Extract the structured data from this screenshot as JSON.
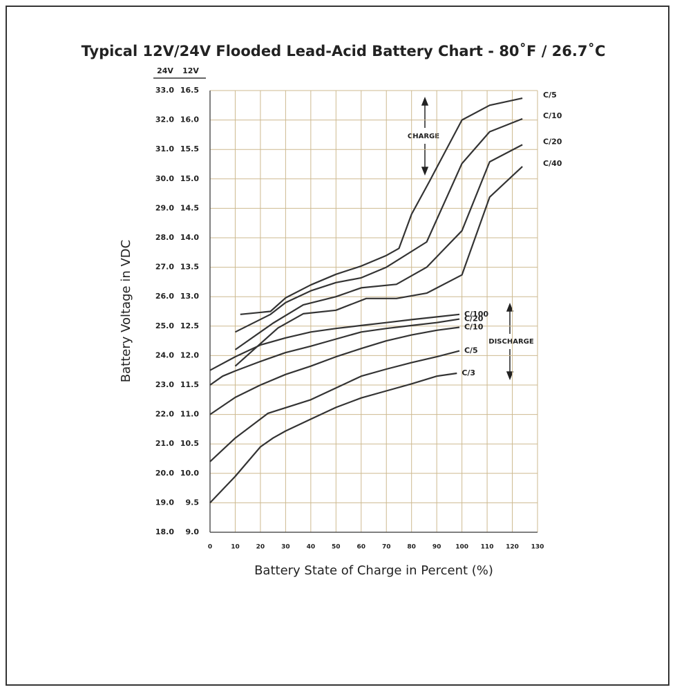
{
  "chart_data": {
    "type": "line",
    "title": "Typical 12V/24V Flooded Lead-Acid Battery Chart - 80˚F / 26.7˚C",
    "x_label": "Battery State of Charge in Percent (%)",
    "y_label": "Battery Voltage in VDC",
    "y_header": "12V",
    "y2_header": "24V",
    "annotations": [
      "CHARGE",
      "DISCHARGE"
    ],
    "xlim": [
      0,
      130
    ],
    "xticks": [
      0,
      10,
      20,
      30,
      40,
      50,
      60,
      70,
      80,
      90,
      100,
      110,
      120,
      130
    ],
    "ylim": [
      9,
      16.5
    ],
    "yticks": [
      {
        "value": 9,
        "label": "9.0"
      },
      9.5,
      {
        "value": 10,
        "label": "10.0"
      },
      10.5,
      {
        "value": 11,
        "label": "11.0"
      },
      11.5,
      {
        "value": 12,
        "label": "12.0"
      },
      12.5,
      {
        "value": 13,
        "label": "13.0"
      },
      13.5,
      {
        "value": 14,
        "label": "14.0"
      },
      14.5,
      {
        "value": 15,
        "label": "15.0"
      },
      15.5,
      {
        "value": 16,
        "label": "16.0"
      },
      16.5
    ],
    "y2lim": [
      18,
      33
    ],
    "y2ticks": [
      {
        "value": 18,
        "label": "18.0"
      },
      {
        "value": 19,
        "label": "19.0"
      },
      {
        "value": 20,
        "label": "20.0"
      },
      {
        "value": 21,
        "label": "21.0"
      },
      {
        "value": 22,
        "label": "22.0"
      },
      {
        "value": 23,
        "label": "23.0"
      },
      {
        "value": 24,
        "label": "24.0"
      },
      {
        "value": 25,
        "label": "25.0"
      },
      {
        "value": 26,
        "label": "26.0"
      },
      {
        "value": 27,
        "label": "27.0"
      },
      {
        "value": 28,
        "label": "28.0"
      },
      {
        "value": 29,
        "label": "29.0"
      },
      {
        "value": 30,
        "label": "30.0"
      },
      {
        "value": 31,
        "label": "31.0"
      },
      {
        "value": 32,
        "label": "32.0"
      },
      {
        "value": 33,
        "label": "33.0"
      }
    ],
    "grid": true,
    "grid_color": "#cdb98f",
    "series": [
      {
        "name": "C/5",
        "color": "#333333",
        "x": [
          12,
          24,
          30,
          40,
          50,
          60,
          70,
          75,
          80,
          87,
          100,
          111,
          124
        ],
        "values": [
          12.7,
          12.75,
          12.98,
          13.2,
          13.38,
          13.52,
          13.7,
          13.82,
          14.4,
          14.95,
          16.0,
          16.25,
          16.37
        ]
      },
      {
        "name": "C/10",
        "color": "#333333",
        "x": [
          10,
          24,
          30,
          40,
          50,
          60,
          70,
          86,
          100,
          111,
          124
        ],
        "values": [
          12.4,
          12.7,
          12.9,
          13.1,
          13.24,
          13.32,
          13.5,
          13.93,
          15.26,
          15.8,
          16.02
        ]
      },
      {
        "name": "C/20",
        "color": "#333333",
        "x": [
          10,
          25,
          37,
          50,
          60,
          74,
          86,
          100,
          111,
          124
        ],
        "values": [
          12.1,
          12.55,
          12.86,
          13.0,
          13.15,
          13.21,
          13.5,
          14.12,
          15.29,
          15.58
        ]
      },
      {
        "name": "C/40",
        "color": "#333333",
        "x": [
          10,
          27,
          37,
          50,
          62,
          74,
          86,
          100,
          111,
          124
        ],
        "values": [
          11.82,
          12.47,
          12.71,
          12.77,
          12.97,
          12.97,
          13.06,
          13.37,
          14.69,
          15.21
        ]
      },
      {
        "name": "C/100",
        "color": "#333333",
        "x": [
          0,
          10,
          20,
          30,
          40,
          50,
          60,
          70,
          80,
          99
        ],
        "values": [
          11.75,
          11.98,
          12.18,
          12.3,
          12.4,
          12.46,
          12.51,
          12.56,
          12.61,
          12.7
        ]
      },
      {
        "name": "C/20",
        "color": "#333333",
        "x": [
          0,
          5,
          10,
          20,
          30,
          40,
          50,
          60,
          70,
          80,
          90,
          99
        ],
        "values": [
          11.5,
          11.65,
          11.74,
          11.9,
          12.05,
          12.16,
          12.28,
          12.4,
          12.46,
          12.51,
          12.56,
          12.62
        ]
      },
      {
        "name": "C/10",
        "color": "#333333",
        "x": [
          0,
          10,
          20,
          30,
          40,
          50,
          60,
          70,
          80,
          90,
          99
        ],
        "values": [
          11.0,
          11.29,
          11.5,
          11.68,
          11.82,
          11.98,
          12.12,
          12.25,
          12.35,
          12.43,
          12.48
        ]
      },
      {
        "name": "C/5",
        "color": "#333333",
        "x": [
          0,
          10,
          23,
          40,
          50,
          60,
          70,
          80,
          90,
          99
        ],
        "values": [
          10.2,
          10.6,
          11.02,
          11.25,
          11.45,
          11.65,
          11.77,
          11.88,
          11.98,
          12.08
        ]
      },
      {
        "name": "C/3",
        "color": "#333333",
        "x": [
          0,
          10,
          20,
          25,
          30,
          40,
          50,
          60,
          70,
          80,
          90,
          98
        ],
        "values": [
          9.5,
          9.95,
          10.45,
          10.6,
          10.72,
          10.92,
          11.12,
          11.28,
          11.4,
          11.52,
          11.65,
          11.7
        ]
      }
    ]
  }
}
